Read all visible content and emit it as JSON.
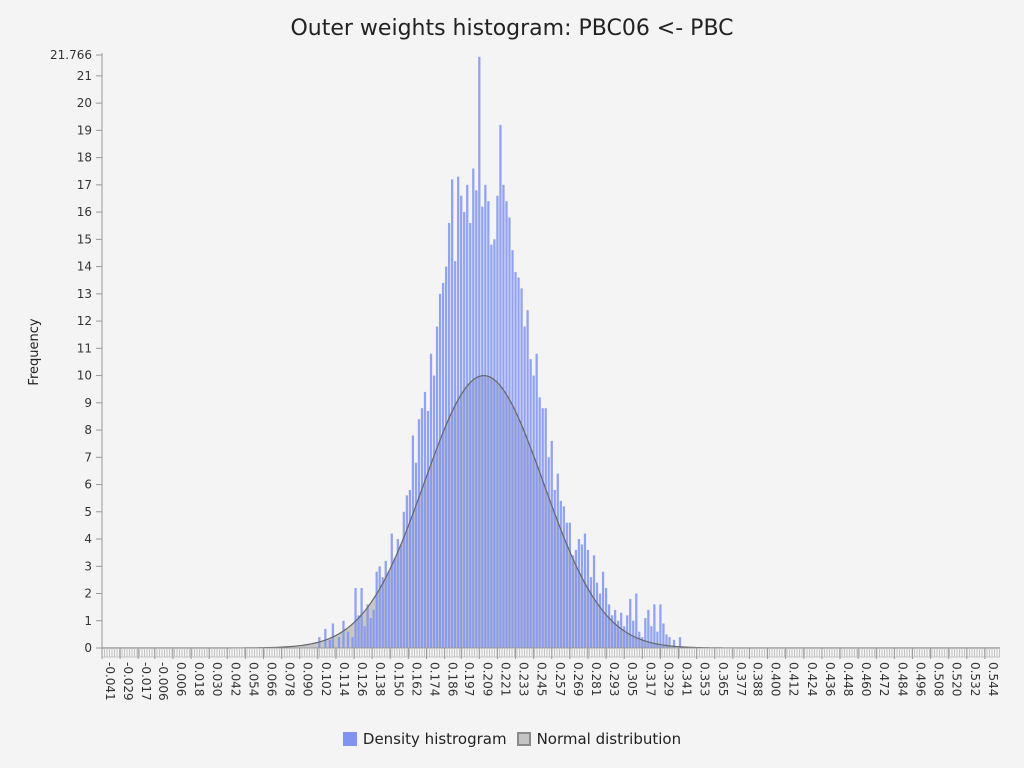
{
  "chart_data": {
    "type": "bar",
    "title": "Outer weights histogram: PBC06 <- PBC",
    "ylabel": "Frequency",
    "xlabel": "",
    "xlim": [
      -0.041,
      0.554
    ],
    "ylim": [
      0,
      21.766
    ],
    "y_ticks": [
      "21.766",
      "21",
      "20",
      "19",
      "18",
      "17",
      "16",
      "15",
      "14",
      "13",
      "12",
      "11",
      "10",
      "9",
      "8",
      "7",
      "6",
      "5",
      "4",
      "3",
      "2",
      "1",
      "0"
    ],
    "x_ticks": [
      "-0.041",
      "-0.029",
      "-0.017",
      "-0.006",
      "0.006",
      "0.018",
      "0.030",
      "0.042",
      "0.054",
      "0.066",
      "0.078",
      "0.090",
      "0.102",
      "0.114",
      "0.126",
      "0.138",
      "0.150",
      "0.162",
      "0.174",
      "0.186",
      "0.197",
      "0.209",
      "0.221",
      "0.233",
      "0.245",
      "0.257",
      "0.269",
      "0.281",
      "0.293",
      "0.305",
      "0.317",
      "0.329",
      "0.341",
      "0.353",
      "0.365",
      "0.377",
      "0.388",
      "0.400",
      "0.412",
      "0.424",
      "0.436",
      "0.448",
      "0.460",
      "0.472",
      "0.484",
      "0.496",
      "0.508",
      "0.520",
      "0.532",
      "0.544"
    ],
    "series": [
      {
        "name": "Density histrogram",
        "color": "#8093f1",
        "bin_width": 0.0015,
        "values": [
          [
            0.103,
            0.4
          ],
          [
            0.107,
            0.7
          ],
          [
            0.11,
            0.3
          ],
          [
            0.112,
            0.9
          ],
          [
            0.116,
            0.4
          ],
          [
            0.119,
            1.0
          ],
          [
            0.122,
            0.6
          ],
          [
            0.125,
            0.4
          ],
          [
            0.127,
            2.2
          ],
          [
            0.129,
            1.2
          ],
          [
            0.131,
            2.2
          ],
          [
            0.133,
            0.8
          ],
          [
            0.135,
            1.6
          ],
          [
            0.137,
            1.1
          ],
          [
            0.139,
            1.4
          ],
          [
            0.141,
            2.8
          ],
          [
            0.143,
            3.0
          ],
          [
            0.145,
            2.6
          ],
          [
            0.147,
            3.2
          ],
          [
            0.149,
            2.8
          ],
          [
            0.151,
            4.2
          ],
          [
            0.153,
            3.3
          ],
          [
            0.155,
            4.0
          ],
          [
            0.157,
            3.8
          ],
          [
            0.159,
            5.0
          ],
          [
            0.161,
            5.6
          ],
          [
            0.163,
            5.8
          ],
          [
            0.165,
            7.8
          ],
          [
            0.167,
            6.8
          ],
          [
            0.169,
            8.4
          ],
          [
            0.171,
            8.8
          ],
          [
            0.173,
            9.4
          ],
          [
            0.175,
            8.7
          ],
          [
            0.177,
            10.8
          ],
          [
            0.179,
            10.0
          ],
          [
            0.181,
            11.8
          ],
          [
            0.183,
            13.0
          ],
          [
            0.185,
            13.4
          ],
          [
            0.187,
            14.0
          ],
          [
            0.189,
            15.6
          ],
          [
            0.191,
            17.2
          ],
          [
            0.193,
            14.2
          ],
          [
            0.195,
            17.3
          ],
          [
            0.197,
            16.6
          ],
          [
            0.199,
            16.0
          ],
          [
            0.201,
            17.0
          ],
          [
            0.203,
            15.6
          ],
          [
            0.205,
            17.6
          ],
          [
            0.207,
            16.8
          ],
          [
            0.209,
            21.7
          ],
          [
            0.211,
            16.2
          ],
          [
            0.213,
            17.0
          ],
          [
            0.215,
            16.4
          ],
          [
            0.217,
            14.8
          ],
          [
            0.219,
            15.0
          ],
          [
            0.221,
            16.6
          ],
          [
            0.223,
            19.2
          ],
          [
            0.225,
            17.0
          ],
          [
            0.227,
            16.4
          ],
          [
            0.229,
            15.8
          ],
          [
            0.231,
            14.6
          ],
          [
            0.233,
            13.8
          ],
          [
            0.235,
            13.6
          ],
          [
            0.237,
            13.2
          ],
          [
            0.239,
            11.8
          ],
          [
            0.241,
            12.4
          ],
          [
            0.243,
            10.6
          ],
          [
            0.245,
            10.0
          ],
          [
            0.247,
            10.8
          ],
          [
            0.249,
            9.2
          ],
          [
            0.251,
            8.8
          ],
          [
            0.253,
            8.8
          ],
          [
            0.255,
            7.0
          ],
          [
            0.257,
            7.6
          ],
          [
            0.259,
            5.8
          ],
          [
            0.261,
            6.4
          ],
          [
            0.263,
            5.4
          ],
          [
            0.265,
            5.2
          ],
          [
            0.267,
            4.6
          ],
          [
            0.269,
            4.6
          ],
          [
            0.271,
            3.4
          ],
          [
            0.273,
            3.6
          ],
          [
            0.275,
            4.0
          ],
          [
            0.277,
            3.8
          ],
          [
            0.279,
            4.2
          ],
          [
            0.281,
            3.6
          ],
          [
            0.283,
            2.6
          ],
          [
            0.285,
            3.4
          ],
          [
            0.287,
            2.4
          ],
          [
            0.289,
            2.0
          ],
          [
            0.291,
            2.8
          ],
          [
            0.293,
            2.2
          ],
          [
            0.295,
            1.6
          ],
          [
            0.297,
            1.2
          ],
          [
            0.299,
            1.4
          ],
          [
            0.301,
            1.0
          ],
          [
            0.303,
            1.3
          ],
          [
            0.305,
            0.8
          ],
          [
            0.307,
            1.2
          ],
          [
            0.309,
            1.8
          ],
          [
            0.311,
            1.0
          ],
          [
            0.313,
            2.0
          ],
          [
            0.315,
            0.6
          ],
          [
            0.317,
            0.4
          ],
          [
            0.319,
            1.1
          ],
          [
            0.321,
            1.4
          ],
          [
            0.323,
            0.8
          ],
          [
            0.325,
            1.6
          ],
          [
            0.327,
            0.6
          ],
          [
            0.329,
            1.6
          ],
          [
            0.331,
            0.9
          ],
          [
            0.333,
            0.5
          ],
          [
            0.335,
            0.4
          ],
          [
            0.338,
            0.3
          ],
          [
            0.342,
            0.4
          ]
        ]
      },
      {
        "name": "Normal distribution",
        "color": "#8a8a8a",
        "type": "area",
        "mean": 0.212,
        "std": 0.0395,
        "peak": 10.0
      }
    ],
    "legend": "bottom",
    "grid": false
  }
}
